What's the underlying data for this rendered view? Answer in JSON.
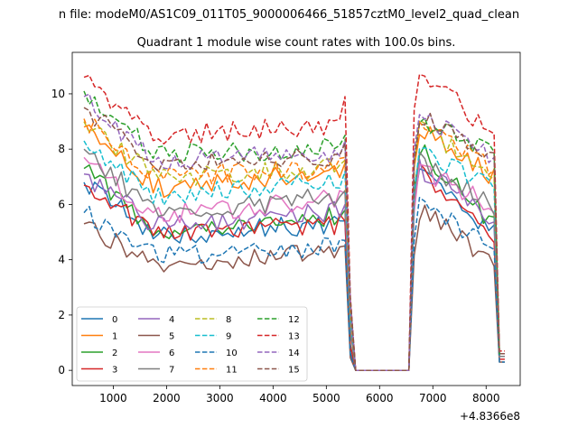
{
  "figure": {
    "suptitle": "n file: modeM0/AS1C09_011T05_9000006466_51857cztM0_level2_quad_clean",
    "offset_label": "+4.8366e8"
  },
  "chart_data": {
    "type": "line",
    "title": "Quadrant 1 module wise count rates with 100.0s bins.",
    "xlabel": "",
    "ylabel": "",
    "x_offset": 483660000,
    "xlim": [
      230,
      8640
    ],
    "ylim": [
      -0.55,
      11.5
    ],
    "xticks": [
      1000,
      2000,
      3000,
      4000,
      5000,
      6000,
      7000,
      8000
    ],
    "yticks": [
      0,
      2,
      4,
      6,
      8,
      10
    ],
    "grid": false,
    "legend": {
      "location": "lower-left",
      "columns": 4
    },
    "gap": {
      "start": 5550,
      "end": 6550
    },
    "x_first": 450,
    "x_step": 100,
    "series": [
      {
        "name": "0",
        "color": "#1f77b4",
        "dash": "solid",
        "base": 5.0,
        "early": 6.8,
        "dip": 4.9,
        "drop": 0.7,
        "mid": 5.3,
        "peak": 5.4,
        "post": 7.6,
        "late": 4.7,
        "tail": 0.5
      },
      {
        "name": "1",
        "color": "#ff7f0e",
        "dash": "solid",
        "base": 6.7,
        "early": 8.8,
        "dip": 6.6,
        "drop": 2.0,
        "mid": 7.2,
        "peak": 7.5,
        "post": 8.8,
        "late": 6.8,
        "tail": 0.6
      },
      {
        "name": "2",
        "color": "#2ca02c",
        "dash": "solid",
        "base": 5.2,
        "early": 7.3,
        "dip": 5.1,
        "drop": 1.0,
        "mid": 5.6,
        "peak": 5.8,
        "post": 8.0,
        "late": 5.0,
        "tail": 0.5
      },
      {
        "name": "3",
        "color": "#d62728",
        "dash": "solid",
        "base": 5.1,
        "early": 6.7,
        "dip": 4.9,
        "drop": 0.8,
        "mid": 5.3,
        "peak": 5.4,
        "post": 7.2,
        "late": 4.6,
        "tail": 0.4
      },
      {
        "name": "4",
        "color": "#9467bd",
        "dash": "solid",
        "base": 5.3,
        "early": 7.1,
        "dip": 5.2,
        "drop": 1.5,
        "mid": 5.8,
        "peak": 6.0,
        "post": 7.3,
        "late": 5.4,
        "tail": 0.5
      },
      {
        "name": "5",
        "color": "#8c564b",
        "dash": "solid",
        "base": 4.0,
        "early": 5.3,
        "dip": 3.9,
        "drop": 0.5,
        "mid": 4.3,
        "peak": 4.5,
        "post": 5.8,
        "late": 3.8,
        "tail": 0.3
      },
      {
        "name": "6",
        "color": "#e377c2",
        "dash": "solid",
        "base": 5.7,
        "early": 7.7,
        "dip": 5.6,
        "drop": 1.5,
        "mid": 6.2,
        "peak": 6.4,
        "post": 7.3,
        "late": 5.8,
        "tail": 0.5
      },
      {
        "name": "7",
        "color": "#7f7f7f",
        "dash": "solid",
        "base": 5.8,
        "early": 8.0,
        "dip": 5.7,
        "drop": 1.5,
        "mid": 6.3,
        "peak": 6.5,
        "post": 7.7,
        "late": 5.7,
        "tail": 0.5
      },
      {
        "name": "8",
        "color": "#bcbd22",
        "dash": "dashed",
        "base": 7.1,
        "early": 9.0,
        "dip": 7.0,
        "drop": 2.0,
        "mid": 7.3,
        "peak": 7.6,
        "post": 8.8,
        "late": 7.0,
        "tail": 0.6
      },
      {
        "name": "9",
        "color": "#17becf",
        "dash": "dashed",
        "base": 6.4,
        "early": 8.3,
        "dip": 6.3,
        "drop": 2.0,
        "mid": 6.8,
        "peak": 7.2,
        "post": 8.0,
        "late": 6.4,
        "tail": 0.6
      },
      {
        "name": "10",
        "color": "#1f77b4",
        "dash": "dashed",
        "base": 4.2,
        "early": 5.7,
        "dip": 4.1,
        "drop": 0.6,
        "mid": 4.5,
        "peak": 4.7,
        "post": 6.2,
        "late": 4.2,
        "tail": 0.3
      },
      {
        "name": "11",
        "color": "#ff7f0e",
        "dash": "dashed",
        "base": 7.1,
        "early": 9.1,
        "dip": 7.0,
        "drop": 2.0,
        "mid": 7.3,
        "peak": 7.7,
        "post": 8.9,
        "late": 7.1,
        "tail": 0.6
      },
      {
        "name": "12",
        "color": "#2ca02c",
        "dash": "dashed",
        "base": 7.9,
        "early": 10.1,
        "dip": 7.8,
        "drop": 2.5,
        "mid": 8.1,
        "peak": 8.5,
        "post": 9.1,
        "late": 7.8,
        "tail": 0.6
      },
      {
        "name": "13",
        "color": "#d62728",
        "dash": "dashed",
        "base": 8.6,
        "early": 10.6,
        "dip": 8.5,
        "drop": 2.5,
        "mid": 8.9,
        "peak": 9.9,
        "post": 10.8,
        "late": 8.4,
        "tail": 0.7
      },
      {
        "name": "14",
        "color": "#9467bd",
        "dash": "dashed",
        "base": 7.6,
        "early": 9.9,
        "dip": 7.5,
        "drop": 2.5,
        "mid": 7.9,
        "peak": 8.3,
        "post": 9.3,
        "late": 7.6,
        "tail": 0.6
      },
      {
        "name": "15",
        "color": "#8c564b",
        "dash": "dashed",
        "base": 7.5,
        "early": 9.5,
        "dip": 7.4,
        "drop": 2.5,
        "mid": 7.8,
        "peak": 8.2,
        "post": 9.2,
        "late": 7.5,
        "tail": 0.6
      }
    ]
  }
}
